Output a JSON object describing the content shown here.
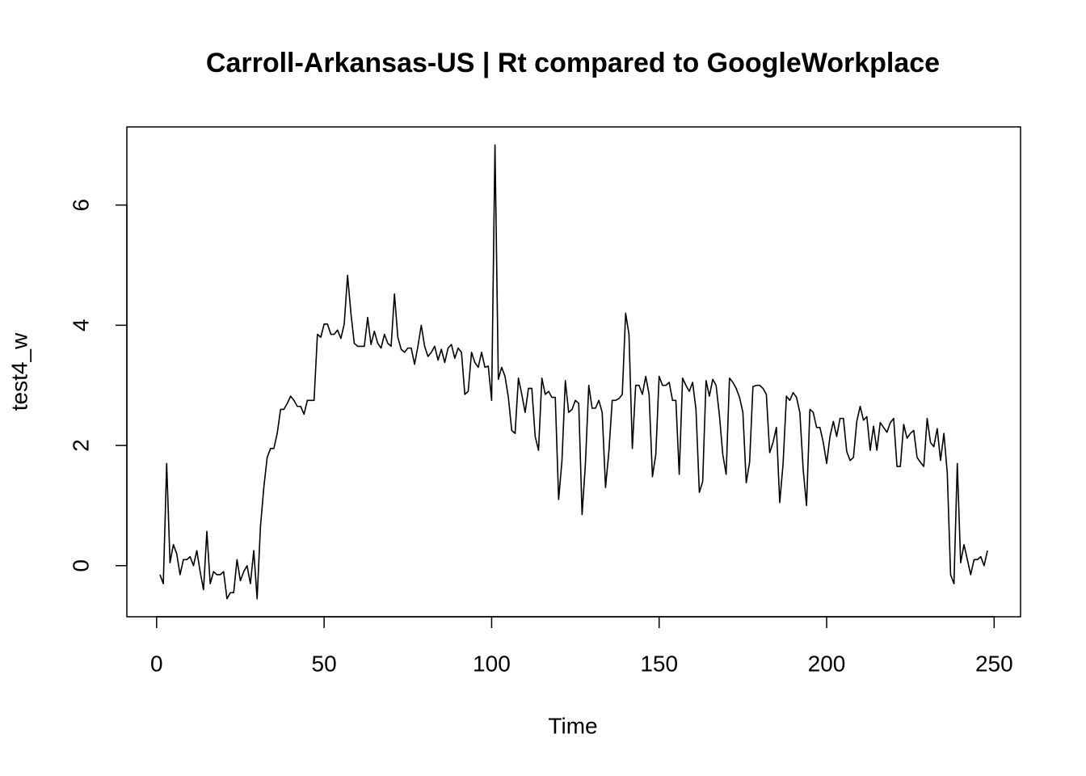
{
  "chart_data": {
    "type": "line",
    "title": "Carroll-Arkansas-US | Rt compared to GoogleWorkplace",
    "x_label": "Time",
    "y_label": "test4_w",
    "color": "#000000",
    "x": [
      1,
      2,
      3,
      4,
      5,
      6,
      7,
      8,
      9,
      10,
      11,
      12,
      13,
      14,
      15,
      16,
      17,
      18,
      19,
      20,
      21,
      22,
      23,
      24,
      25,
      26,
      27,
      28,
      29,
      30,
      31,
      32,
      33,
      34,
      35,
      36,
      37,
      38,
      39,
      40,
      41,
      42,
      43,
      44,
      45,
      46,
      47,
      48,
      49,
      50,
      51,
      52,
      53,
      54,
      55,
      56,
      57,
      58,
      59,
      60,
      61,
      62,
      63,
      64,
      65,
      66,
      67,
      68,
      69,
      70,
      71,
      72,
      73,
      74,
      75,
      76,
      77,
      78,
      79,
      80,
      81,
      82,
      83,
      84,
      85,
      86,
      87,
      88,
      89,
      90,
      91,
      92,
      93,
      94,
      95,
      96,
      97,
      98,
      99,
      100,
      101,
      102,
      103,
      104,
      105,
      106,
      107,
      108,
      109,
      110,
      111,
      112,
      113,
      114,
      115,
      116,
      117,
      118,
      119,
      120,
      121,
      122,
      123,
      124,
      125,
      126,
      127,
      128,
      129,
      130,
      131,
      132,
      133,
      134,
      135,
      136,
      137,
      138,
      139,
      140,
      141,
      142,
      143,
      144,
      145,
      146,
      147,
      148,
      149,
      150,
      151,
      152,
      153,
      154,
      155,
      156,
      157,
      158,
      159,
      160,
      161,
      162,
      163,
      164,
      165,
      166,
      167,
      168,
      169,
      170,
      171,
      172,
      173,
      174,
      175,
      176,
      177,
      178,
      179,
      180,
      181,
      182,
      183,
      184,
      185,
      186,
      187,
      188,
      189,
      190,
      191,
      192,
      193,
      194,
      195,
      196,
      197,
      198,
      199,
      200,
      201,
      202,
      203,
      204,
      205,
      206,
      207,
      208,
      209,
      210,
      211,
      212,
      213,
      214,
      215,
      216,
      217,
      218,
      219,
      220,
      221,
      222,
      223,
      224,
      225,
      226,
      227,
      228,
      229,
      230,
      231,
      232,
      233,
      234,
      235,
      236,
      237,
      238,
      239,
      240,
      241,
      242,
      243,
      244,
      245,
      246,
      247,
      248
    ],
    "values": [
      -0.15,
      -0.3,
      1.7,
      0.05,
      0.35,
      0.2,
      -0.15,
      0.1,
      0.1,
      0.15,
      0.0,
      0.25,
      -0.1,
      -0.4,
      0.57,
      -0.3,
      -0.1,
      -0.15,
      -0.15,
      -0.1,
      -0.55,
      -0.45,
      -0.45,
      0.1,
      -0.25,
      -0.1,
      0.0,
      -0.3,
      0.25,
      -0.55,
      0.65,
      1.3,
      1.8,
      1.95,
      1.95,
      2.2,
      2.6,
      2.6,
      2.7,
      2.82,
      2.75,
      2.65,
      2.65,
      2.52,
      2.75,
      2.75,
      2.75,
      3.85,
      3.8,
      4.02,
      4.02,
      3.85,
      3.85,
      3.92,
      3.78,
      4.02,
      4.83,
      4.2,
      3.7,
      3.65,
      3.65,
      3.65,
      4.13,
      3.68,
      3.9,
      3.7,
      3.62,
      3.85,
      3.7,
      3.65,
      4.52,
      3.8,
      3.6,
      3.55,
      3.62,
      3.62,
      3.35,
      3.65,
      4.0,
      3.65,
      3.48,
      3.55,
      3.65,
      3.42,
      3.6,
      3.38,
      3.62,
      3.68,
      3.45,
      3.62,
      3.55,
      2.85,
      2.9,
      3.55,
      3.38,
      3.3,
      3.55,
      3.3,
      3.32,
      2.75,
      7.0,
      3.1,
      3.3,
      3.15,
      2.8,
      2.25,
      2.2,
      3.12,
      2.85,
      2.55,
      2.95,
      2.95,
      2.15,
      1.92,
      3.12,
      2.85,
      2.9,
      2.8,
      2.8,
      1.1,
      1.75,
      3.08,
      2.55,
      2.6,
      2.75,
      2.7,
      0.85,
      1.7,
      3.0,
      2.62,
      2.62,
      2.75,
      2.55,
      1.3,
      1.9,
      2.75,
      2.75,
      2.78,
      2.85,
      4.2,
      3.85,
      1.95,
      3.0,
      3.0,
      2.85,
      3.15,
      2.85,
      1.48,
      1.85,
      3.15,
      3.0,
      3.0,
      3.05,
      2.75,
      2.75,
      1.52,
      3.12,
      3.0,
      2.9,
      3.05,
      2.6,
      1.22,
      1.4,
      3.08,
      2.82,
      3.1,
      3.0,
      2.5,
      1.85,
      1.52,
      3.12,
      3.05,
      2.95,
      2.8,
      2.55,
      1.38,
      1.72,
      2.98,
      3.0,
      3.0,
      2.95,
      2.85,
      1.88,
      2.05,
      2.3,
      1.05,
      1.7,
      2.82,
      2.75,
      2.88,
      2.8,
      2.55,
      1.6,
      1.0,
      2.6,
      2.55,
      2.3,
      2.3,
      2.05,
      1.7,
      2.15,
      2.4,
      2.15,
      2.45,
      2.45,
      1.9,
      1.75,
      1.8,
      2.4,
      2.65,
      2.42,
      2.48,
      1.92,
      2.32,
      1.92,
      2.38,
      2.3,
      2.22,
      2.38,
      2.45,
      1.65,
      1.65,
      2.35,
      2.12,
      2.2,
      2.25,
      1.8,
      1.72,
      1.65,
      2.45,
      2.05,
      1.98,
      2.28,
      1.75,
      2.2,
      1.55,
      -0.15,
      -0.3,
      1.7,
      0.05,
      0.35,
      0.1,
      -0.15,
      0.1,
      0.1,
      0.15,
      0.0,
      0.25
    ],
    "xlim": [
      -8.88,
      257.88
    ],
    "ylim": [
      -0.85,
      7.3
    ],
    "xticks": [
      0,
      50,
      100,
      150,
      200,
      250
    ],
    "yticks": [
      0,
      2,
      4,
      6
    ]
  }
}
